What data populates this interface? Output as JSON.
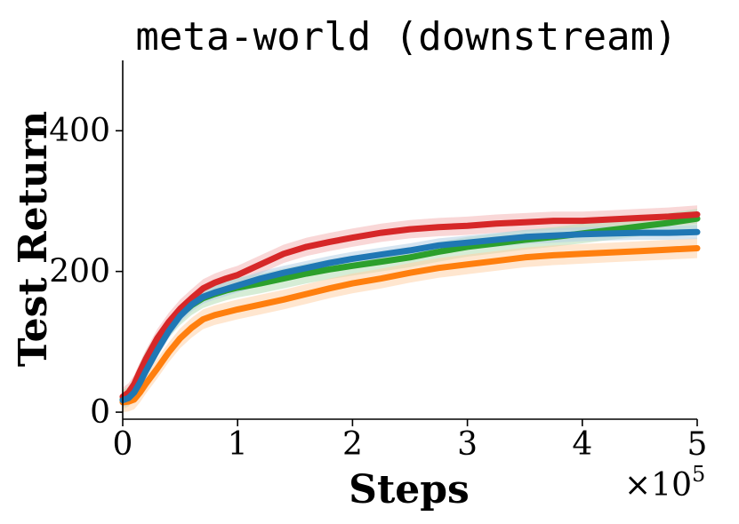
{
  "chart_data": {
    "type": "line",
    "title": "meta-world (downstream)",
    "xlabel": "Steps",
    "ylabel": "Test Return",
    "x_multiplier": "×10",
    "x_multiplier_exp": "5",
    "xlim": [
      0,
      5
    ],
    "ylim": [
      -10,
      500
    ],
    "xticks": [
      0,
      1,
      2,
      3,
      4,
      5
    ],
    "xtick_labels": [
      "0",
      "1",
      "2",
      "3",
      "4",
      "5"
    ],
    "yticks": [
      0,
      200,
      400
    ],
    "ytick_labels": [
      "0",
      "200",
      "400"
    ],
    "grid": false,
    "legend": "none",
    "x": [
      0,
      0.05,
      0.1,
      0.15,
      0.2,
      0.3,
      0.4,
      0.5,
      0.6,
      0.7,
      0.8,
      0.9,
      1.0,
      1.2,
      1.4,
      1.6,
      1.8,
      2.0,
      2.25,
      2.5,
      2.75,
      3.0,
      3.25,
      3.5,
      3.75,
      4.0,
      4.25,
      4.5,
      4.75,
      5.0
    ],
    "series": [
      {
        "color": "#d62728",
        "band_color": "#f4b6b6",
        "values": [
          22,
          28,
          40,
          58,
          75,
          105,
          128,
          147,
          162,
          176,
          184,
          190,
          195,
          210,
          225,
          235,
          242,
          248,
          255,
          260,
          263,
          265,
          268,
          270,
          272,
          272,
          274,
          276,
          278,
          281
        ],
        "band": 13
      },
      {
        "color": "#2ca02c",
        "band_color": "#b5deb5",
        "values": [
          18,
          22,
          35,
          55,
          72,
          98,
          120,
          138,
          152,
          162,
          168,
          173,
          177,
          183,
          190,
          197,
          203,
          208,
          214,
          220,
          228,
          235,
          240,
          245,
          249,
          254,
          259,
          264,
          269,
          275
        ],
        "band": 14
      },
      {
        "color": "#ff7f0e",
        "band_color": "#ffd2a8",
        "values": [
          14,
          15,
          18,
          28,
          40,
          62,
          85,
          105,
          120,
          132,
          138,
          142,
          146,
          153,
          160,
          168,
          176,
          183,
          190,
          198,
          205,
          210,
          215,
          220,
          223,
          225,
          227,
          229,
          231,
          233
        ],
        "band": 14
      },
      {
        "color": "#1f77b4",
        "band_color": "#b3d0e6",
        "values": [
          17,
          20,
          28,
          42,
          58,
          88,
          115,
          137,
          153,
          164,
          170,
          175,
          180,
          190,
          198,
          205,
          212,
          218,
          224,
          230,
          237,
          241,
          245,
          249,
          251,
          253,
          254,
          255,
          255,
          256
        ],
        "band": 10
      }
    ]
  }
}
